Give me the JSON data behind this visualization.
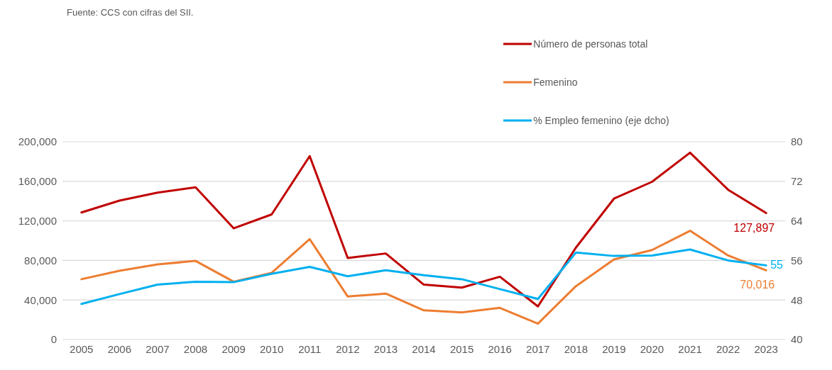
{
  "chart_data": {
    "type": "line",
    "annotations": [
      "Fuente: CCS con cifras del SII."
    ],
    "categories": [
      "2005",
      "2006",
      "2007",
      "2008",
      "2009",
      "2010",
      "2011",
      "2012",
      "2013",
      "2014",
      "2015",
      "2016",
      "2017",
      "2018",
      "2019",
      "2020",
      "2021",
      "2022",
      "2023"
    ],
    "series": [
      {
        "name": "Número de personas total",
        "color": "#c00000",
        "values": [
          128500,
          140500,
          148500,
          154000,
          112500,
          126500,
          185500,
          82500,
          87000,
          55500,
          52500,
          63500,
          33500,
          93000,
          142500,
          159500,
          189000,
          151500,
          127897
        ],
        "value_labels": [
          null,
          null,
          null,
          null,
          null,
          null,
          null,
          null,
          null,
          null,
          null,
          null,
          null,
          null,
          null,
          null,
          null,
          null,
          "127,897"
        ]
      },
      {
        "name": "Femenino",
        "color": "#ed7d31",
        "values": [
          61000,
          69500,
          76000,
          79500,
          58500,
          67500,
          101500,
          43500,
          46500,
          29500,
          27500,
          32000,
          16000,
          54000,
          81000,
          90500,
          110000,
          85000,
          70016
        ],
        "value_labels": [
          null,
          null,
          null,
          null,
          null,
          null,
          null,
          null,
          null,
          null,
          null,
          null,
          null,
          null,
          null,
          null,
          null,
          null,
          "70,016"
        ]
      },
      {
        "name": "% Empleo femenino (eje dcho)",
        "color": "#00b0f0",
        "axis": "y2",
        "values": [
          47.2,
          49.2,
          51.1,
          51.7,
          51.6,
          53.3,
          54.7,
          52.8,
          54.0,
          53.0,
          52.2,
          50.2,
          48.2,
          57.6,
          56.9,
          57.0,
          58.2,
          56.0,
          55
        ],
        "value_labels": [
          null,
          null,
          null,
          null,
          null,
          null,
          null,
          null,
          null,
          null,
          null,
          null,
          null,
          null,
          null,
          null,
          null,
          null,
          "55"
        ]
      }
    ],
    "ylim": [
      0,
      200000
    ],
    "yticks": [
      {
        "value": 0,
        "label": "0"
      },
      {
        "value": 40000,
        "label": "40,000"
      },
      {
        "value": 80000,
        "label": "80,000"
      },
      {
        "value": 120000,
        "label": "120,000"
      },
      {
        "value": 160000,
        "label": "160,000"
      },
      {
        "value": 200000,
        "label": "200,000"
      }
    ],
    "y2lim": [
      40,
      80
    ],
    "y2ticks": [
      40,
      48,
      56,
      64,
      72,
      80
    ],
    "grid": "y",
    "legend": "top",
    "marker": "none",
    "line_style": "solid"
  }
}
